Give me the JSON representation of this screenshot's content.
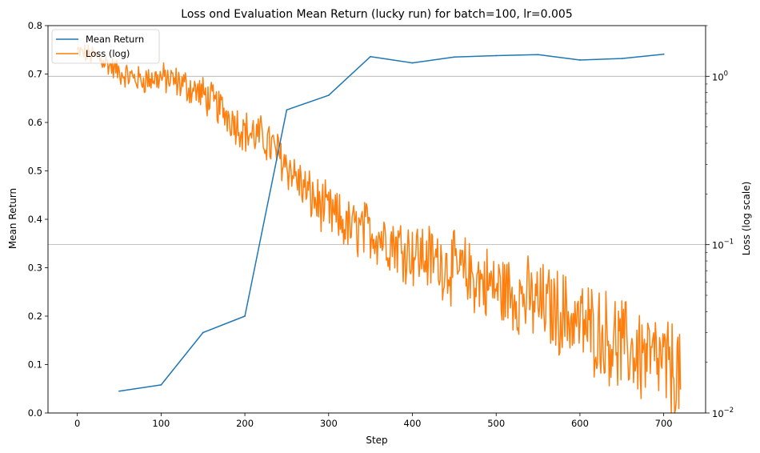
{
  "chart_data": {
    "type": "line",
    "title": "Loss ond Evaluation Mean Return (lucky run) for batch=100, lr=0.005",
    "xlabel": "Step",
    "ylabel": "Mean Return",
    "y2label": "Loss (log scale)",
    "xlim": [
      -35,
      750
    ],
    "ylim": [
      0,
      0.8
    ],
    "y2lim": [
      0.01,
      2.0
    ],
    "y2scale": "log",
    "xticks": [
      "0",
      "100",
      "200",
      "300",
      "400",
      "500",
      "600",
      "700"
    ],
    "yticks": [
      "0.0",
      "0.1",
      "0.2",
      "0.3",
      "0.4",
      "0.5",
      "0.6",
      "0.7",
      "0.8"
    ],
    "y2ticks": [
      {
        "value": 1.0,
        "base": "10",
        "exp": "0"
      },
      {
        "value": 0.1,
        "base": "10",
        "exp": "−1"
      },
      {
        "value": 0.01,
        "base": "10",
        "exp": "−2"
      }
    ],
    "grid": "horizontal grid lines at right-axis major ticks",
    "legend_position": "upper-left",
    "series": [
      {
        "name": "Mean Return",
        "axis": "left",
        "color": "#1f77b4",
        "x": [
          50,
          100,
          150,
          200,
          250,
          300,
          350,
          400,
          450,
          500,
          550,
          600,
          650,
          700
        ],
        "y": [
          0.045,
          0.058,
          0.166,
          0.2,
          0.626,
          0.656,
          0.736,
          0.723,
          0.735,
          0.738,
          0.74,
          0.729,
          0.732,
          0.741
        ]
      },
      {
        "name": "Loss (log)",
        "axis": "right",
        "color": "#ff7f0e",
        "anchors_x": [
          0,
          25,
          50,
          75,
          100,
          125,
          150,
          175,
          200,
          225,
          250,
          275,
          300,
          325,
          350,
          375,
          400,
          425,
          450,
          475,
          500,
          525,
          550,
          575,
          600,
          625,
          650,
          675,
          700,
          720
        ],
        "anchors_y": [
          1.4,
          1.3,
          1.05,
          0.95,
          0.98,
          0.9,
          0.78,
          0.62,
          0.47,
          0.42,
          0.3,
          0.2,
          0.155,
          0.125,
          0.12,
          0.105,
          0.09,
          0.082,
          0.072,
          0.063,
          0.055,
          0.05,
          0.045,
          0.04,
          0.034,
          0.03,
          0.025,
          0.022,
          0.019,
          0.017
        ]
      }
    ]
  }
}
